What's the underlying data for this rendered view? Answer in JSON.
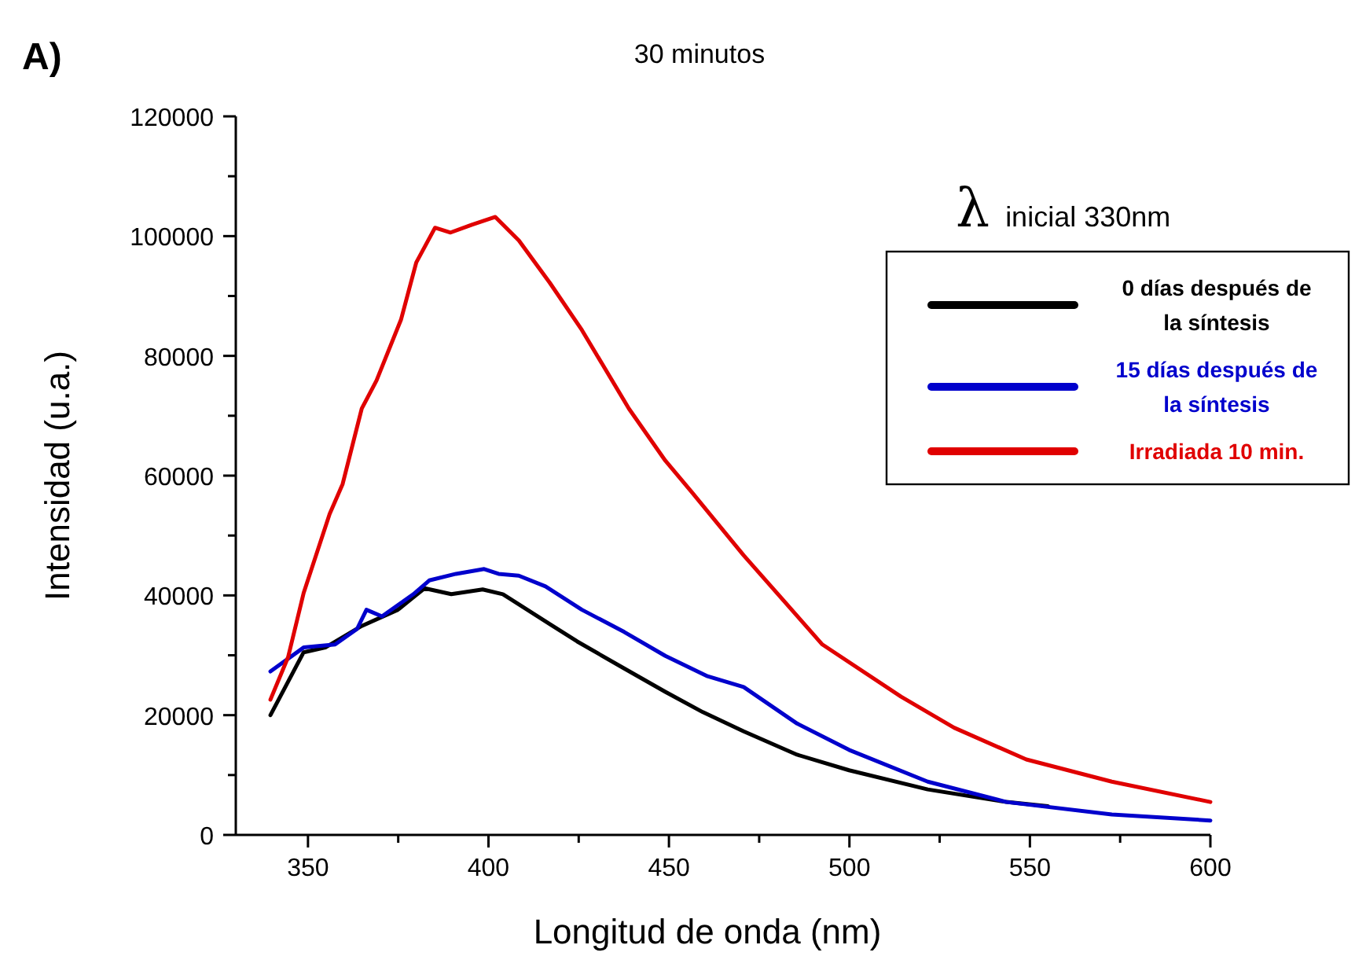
{
  "chart_data": {
    "type": "line",
    "title": "30 minutos",
    "xlabel": "Longitud de onda (nm)",
    "ylabel": "Intensidad (u.a.)",
    "annotations": [
      "A)",
      "λ inicial 330nm"
    ],
    "xlim": [
      330,
      600
    ],
    "xticks": [
      350,
      {
        "value": 375,
        "label": null
      },
      400,
      {
        "value": 425,
        "label": null
      },
      450,
      {
        "value": 475,
        "label": null
      },
      500,
      {
        "value": 525,
        "label": null
      },
      550,
      {
        "value": 575,
        "label": null
      },
      600
    ],
    "ylim": [
      0,
      120000
    ],
    "yticks": [
      0,
      {
        "value": 10000,
        "label": null
      },
      20000,
      {
        "value": 30000,
        "label": null
      },
      40000,
      {
        "value": 50000,
        "label": null
      },
      60000,
      {
        "value": 70000,
        "label": null
      },
      80000,
      {
        "value": 90000,
        "label": null
      },
      100000,
      {
        "value": 110000,
        "label": null
      },
      120000
    ],
    "legend": "top right",
    "grid": false,
    "marker": "none",
    "line_style": "solid",
    "series": [
      {
        "name": "0 días después de la síntesis",
        "color": "#000000",
        "x": [
          339.6,
          348.8,
          354.8,
          364.9,
          374.9,
          382.3,
          389.7,
          398.4,
          404,
          417,
          424.6,
          437.6,
          449,
          459.4,
          470.7,
          485.5,
          499.9,
          521.7,
          543.5,
          555
        ],
        "values": [
          20000,
          30500,
          31300,
          34900,
          37600,
          41200,
          40200,
          41000,
          40200,
          35200,
          32300,
          27800,
          23900,
          20500,
          17300,
          13400,
          10800,
          7600,
          5500,
          4800
        ]
      },
      {
        "name": "15 días después de la síntesis",
        "color": "#0000cc",
        "x": [
          339.6,
          348.8,
          357.5,
          363.6,
          366.2,
          370.5,
          379.2,
          383.6,
          391,
          398.8,
          402.8,
          408.4,
          415.8,
          425.9,
          437.6,
          449,
          460.7,
          470.7,
          485.5,
          499.9,
          521.7,
          543.5,
          572.7,
          600
        ],
        "values": [
          27300,
          31300,
          31800,
          34400,
          37600,
          36500,
          40200,
          42500,
          43600,
          44400,
          43600,
          43300,
          41500,
          37600,
          33900,
          29900,
          26500,
          24700,
          18600,
          14200,
          8900,
          5500,
          3400,
          2400
        ]
      },
      {
        "name": "Irradiada 10 min.",
        "color": "#e00000",
        "x": [
          339.6,
          344.5,
          348.8,
          356,
          359.6,
          364.9,
          369,
          375.8,
          380,
          385.2,
          389.5,
          395.4,
          401.9,
          408.4,
          417,
          425.9,
          438.9,
          449,
          456.4,
          470.7,
          492.5,
          514.3,
          529,
          549,
          572.7,
          600
        ],
        "values": [
          22600,
          29700,
          40400,
          53600,
          58600,
          71200,
          75900,
          86100,
          95600,
          101400,
          100600,
          101900,
          103200,
          99300,
          92200,
          84300,
          71200,
          62500,
          57200,
          46700,
          31800,
          23100,
          17900,
          12600,
          8900,
          5500
        ]
      }
    ]
  }
}
